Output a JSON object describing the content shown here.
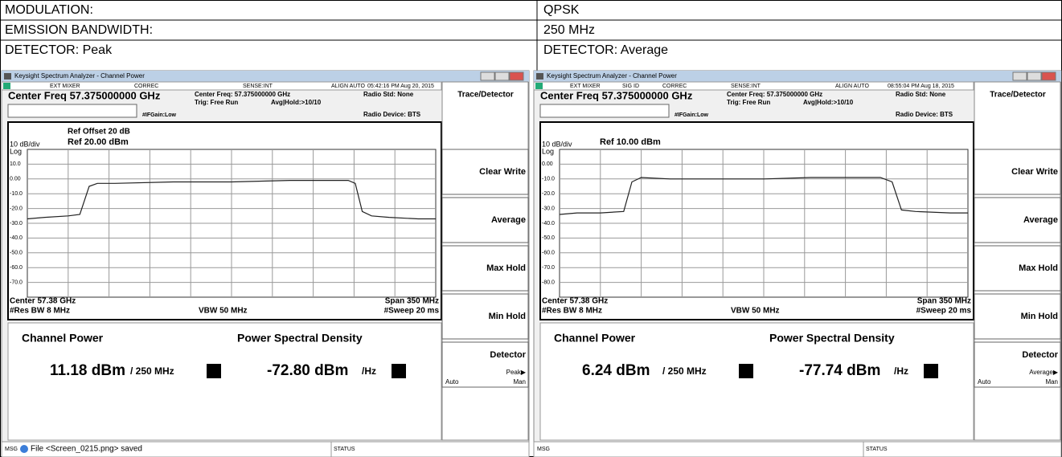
{
  "table": {
    "rows": [
      [
        "MODULATION:",
        "QPSK"
      ],
      [
        "EMISSION BANDWIDTH:",
        "250 MHz"
      ],
      [
        "DETECTOR: Peak",
        "DETECTOR: Average"
      ]
    ]
  },
  "screens": [
    {
      "window_title": "Keysight Spectrum Analyzer - Channel Power",
      "status_items": [
        "EXT MIXER",
        "CORREC",
        "SENSE:INT",
        "ALIGN AUTO",
        "05:42:16 PM Aug 20, 2015"
      ],
      "center_freq": "Center Freq 57.375000000 GHz",
      "info": [
        "Center Freq: 57.375000000 GHz",
        "Trig: Free Run",
        "Avg|Hold:>10/10",
        "#IFGain:Low"
      ],
      "radio_std": "Radio Std: None",
      "radio_device": "Radio Device: BTS",
      "ref_offset": "Ref Offset 20 dB",
      "scale": "10 dB/div",
      "ref_level": "Ref 20.00 dBm",
      "log": "Log",
      "footer": [
        "Center 57.38 GHz",
        "Span 350 MHz",
        "#Res BW 8 MHz",
        "VBW 50 MHz",
        "#Sweep 20 ms"
      ],
      "channel_power_label": "Channel Power",
      "channel_power": "11.18 dBm",
      "channel_power_unit": "/ 250 MHz",
      "psd_label": "Power Spectral Density",
      "psd": "-72.80 dBm",
      "psd_unit": "/Hz",
      "menu_title": "Trace/Detector",
      "softkeys": [
        "Clear Write",
        "Average",
        "Max Hold",
        "Min Hold",
        "Detector"
      ],
      "detector_sel": "Peak▶",
      "detector_auto": "Auto",
      "detector_man": "Man",
      "msg": "MSG",
      "message": "File <Screen_0215.png> saved",
      "status": "STATUS",
      "chart_data": {
        "type": "line",
        "xlim": [
          -175,
          175
        ],
        "ylim": [
          -80,
          20
        ],
        "yticks": [
          {
            "value": 10,
            "label": "10.0"
          },
          {
            "value": 0,
            "label": "0.00"
          },
          {
            "value": -10,
            "label": "-10.0"
          },
          {
            "value": -20,
            "label": "-20.0"
          },
          {
            "value": -30,
            "label": "-30.0"
          },
          {
            "value": -40,
            "label": "-40.0"
          },
          {
            "value": -50,
            "label": "-50.0"
          },
          {
            "value": -60,
            "label": "-60.0"
          },
          {
            "value": -70,
            "label": "-70.0"
          }
        ],
        "x": [
          -175,
          -160,
          -140,
          -130,
          -122,
          -115,
          -100,
          -50,
          0,
          50,
          100,
          106,
          112,
          120,
          135,
          160,
          175
        ],
        "values": [
          -27,
          -26,
          -25,
          -24,
          -5,
          -3,
          -3,
          -2,
          -2,
          -1,
          -1,
          -3,
          -22,
          -25,
          -26,
          -27,
          -27
        ],
        "color": "#222222"
      }
    },
    {
      "window_title": "Keysight Spectrum Analyzer - Channel Power",
      "status_items": [
        "EXT MIXER",
        "SIG ID",
        "CORREC",
        "SENSE:INT",
        "ALIGN AUTO",
        "08:55:04 PM Aug 18, 2015"
      ],
      "center_freq": "Center Freq 57.375000000 GHz",
      "info": [
        "Center Freq: 57.375000000 GHz",
        "Trig: Free Run",
        "Avg|Hold:>10/10",
        "#IFGain:Low"
      ],
      "radio_std": "Radio Std: None",
      "radio_device": "Radio Device: BTS",
      "scale": "10 dB/div",
      "ref_level": "Ref 10.00 dBm",
      "log": "Log",
      "footer": [
        "Center 57.38 GHz",
        "Span 350 MHz",
        "#Res BW 8 MHz",
        "VBW 50 MHz",
        "#Sweep 20 ms"
      ],
      "channel_power_label": "Channel Power",
      "channel_power": "6.24 dBm",
      "channel_power_unit": "/ 250 MHz",
      "psd_label": "Power Spectral Density",
      "psd": "-77.74 dBm",
      "psd_unit": "/Hz",
      "menu_title": "Trace/Detector",
      "softkeys": [
        "Clear Write",
        "Average",
        "Max Hold",
        "Min Hold",
        "Detector"
      ],
      "detector_sel": "Average▶",
      "detector_auto": "Auto",
      "detector_man": "Man",
      "msg": "MSG",
      "status": "STATUS",
      "chart_data": {
        "type": "line",
        "xlim": [
          -175,
          175
        ],
        "ylim": [
          -90,
          10
        ],
        "yticks": [
          {
            "value": 0,
            "label": "0.00"
          },
          {
            "value": -10,
            "label": "-10.0"
          },
          {
            "value": -20,
            "label": "-20.0"
          },
          {
            "value": -30,
            "label": "-30.0"
          },
          {
            "value": -40,
            "label": "-40.0"
          },
          {
            "value": -50,
            "label": "-50.0"
          },
          {
            "value": -60,
            "label": "-60.0"
          },
          {
            "value": -70,
            "label": "-70.0"
          },
          {
            "value": -80,
            "label": "-80.0"
          }
        ],
        "x": [
          -175,
          -160,
          -140,
          -120,
          -113,
          -105,
          -80,
          -40,
          0,
          40,
          80,
          100,
          110,
          118,
          130,
          160,
          175
        ],
        "values": [
          -34,
          -33,
          -33,
          -32,
          -12,
          -9,
          -10,
          -10,
          -10,
          -9,
          -9,
          -9,
          -12,
          -31,
          -32,
          -33,
          -33
        ],
        "color": "#222222"
      }
    }
  ]
}
